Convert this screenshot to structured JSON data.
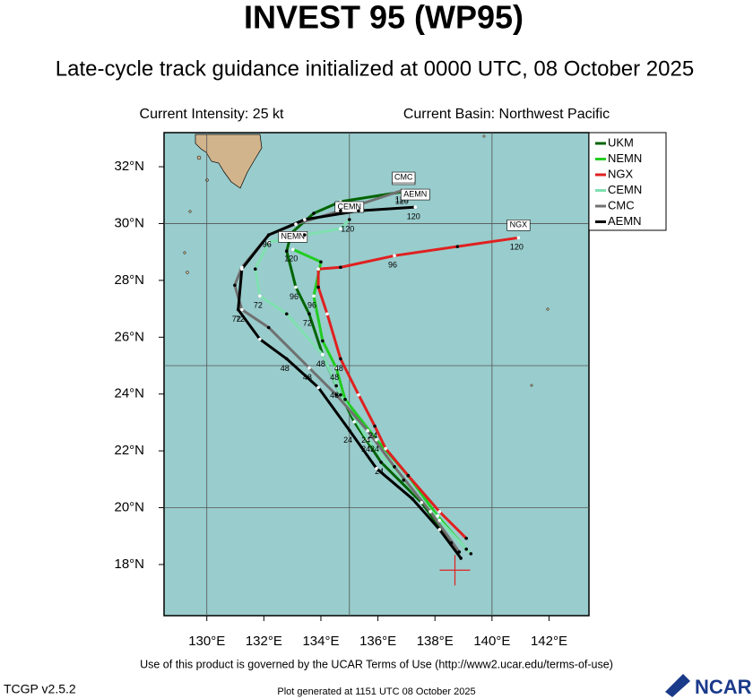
{
  "chart_data": {
    "type": "track",
    "title": "INVEST 95 (WP95)",
    "subtitle": "Late-cycle track guidance initialized at 0000 UTC, 08 October 2025",
    "intensity": "Current Intensity: 25 kt",
    "basin": "Current Basin: Northwest Pacific",
    "footer": "Use of this product is governed by the UCAR Terms of Use (http://www2.ucar.edu/terms-of-use)",
    "version": "TCGP v2.5.2",
    "generated": "Plot generated at 1151 UTC   08 October 2025",
    "logo": "NCAR",
    "xlim": [
      128.5,
      143.4
    ],
    "ylim": [
      16.2,
      33.2
    ],
    "xticks": [
      {
        "value": 130,
        "label": "130°E"
      },
      {
        "value": 132,
        "label": "132°E"
      },
      {
        "value": 134,
        "label": "134°E"
      },
      {
        "value": 136,
        "label": "136°E"
      },
      {
        "value": 138,
        "label": "138°E"
      },
      {
        "value": 140,
        "label": "140°E"
      },
      {
        "value": 142,
        "label": "142°E"
      }
    ],
    "yticks": [
      {
        "value": 18,
        "label": "18°N"
      },
      {
        "value": 20,
        "label": "20°N"
      },
      {
        "value": 22,
        "label": "22°N"
      },
      {
        "value": 24,
        "label": "24°N"
      },
      {
        "value": 26,
        "label": "26°N"
      },
      {
        "value": 28,
        "label": "28°N"
      },
      {
        "value": 30,
        "label": "30°N"
      },
      {
        "value": 32,
        "label": "32°N"
      }
    ],
    "grid_x": [
      130,
      135,
      140
    ],
    "grid_y": [
      20,
      25,
      30
    ],
    "legend": "upper right",
    "current_position": {
      "x": 138.7,
      "y": 17.8
    },
    "series": [
      {
        "name": "UKM",
        "color": "#006400",
        "x": [
          138.57,
          137.53,
          136.11,
          135.17,
          134.54,
          134.06,
          133.59,
          133.12,
          132.8,
          132.96,
          133.75,
          134.69,
          136.9
        ],
        "values": [
          18.76,
          20.18,
          21.6,
          23.02,
          24.29,
          25.39,
          26.82,
          27.76,
          29.03,
          29.66,
          30.36,
          30.77,
          31.12
        ],
        "point_labels": [
          null,
          null,
          "24",
          null,
          "48",
          null,
          "72",
          "96",
          null,
          null,
          null,
          null,
          "120"
        ]
      },
      {
        "name": "NEMN",
        "color": "#22cc22",
        "x": [
          139.1,
          138.09,
          137.06,
          135.95,
          134.85,
          134.54,
          134.06,
          133.75,
          134.0,
          133.02
        ],
        "values": [
          18.54,
          19.71,
          21.13,
          22.39,
          23.81,
          24.92,
          25.87,
          27.45,
          28.65,
          29.09
        ],
        "point_labels": [
          null,
          null,
          null,
          "24",
          null,
          "48",
          null,
          "96",
          null,
          "120"
        ]
      },
      {
        "name": "NGX",
        "color": "#e02020",
        "x": [
          139.1,
          138.16,
          137.06,
          136.27,
          135.89,
          135.32,
          134.69,
          134.22,
          133.91,
          133.91,
          134.69,
          136.58,
          138.79,
          140.93
        ],
        "values": [
          18.92,
          19.86,
          21.13,
          22.08,
          22.87,
          23.97,
          25.24,
          26.82,
          27.76,
          28.4,
          28.46,
          28.87,
          29.19,
          29.5
        ],
        "point_labels": [
          null,
          null,
          null,
          null,
          "24",
          null,
          "48",
          null,
          null,
          null,
          null,
          "96",
          null,
          "120"
        ]
      },
      {
        "name": "CEMN",
        "color": "#7fe0b0",
        "x": [
          139.26,
          138.16,
          136.9,
          135.64,
          134.69,
          134.06,
          132.8,
          131.86,
          131.7,
          132.17,
          133.43,
          134.69,
          135.0
        ],
        "values": [
          18.38,
          19.55,
          20.97,
          22.39,
          23.97,
          25.39,
          26.82,
          27.45,
          28.4,
          29.35,
          29.6,
          29.82,
          30.14
        ],
        "point_labels": [
          null,
          null,
          null,
          "24",
          null,
          "48",
          null,
          "72",
          null,
          null,
          null,
          null,
          "120"
        ]
      },
      {
        "name": "CMC",
        "color": "#707070",
        "x": [
          138.85,
          137.84,
          136.58,
          135.64,
          134.54,
          133.59,
          132.17,
          131.23,
          130.98,
          131.23,
          132.17,
          133.12,
          134.69,
          136.9
        ],
        "values": [
          18.44,
          19.86,
          21.44,
          22.71,
          23.97,
          24.92,
          26.34,
          26.97,
          27.83,
          28.46,
          29.6,
          29.98,
          30.45,
          31.18
        ],
        "point_labels": [
          null,
          null,
          null,
          "24",
          null,
          "48",
          null,
          "72",
          null,
          null,
          "96",
          null,
          null,
          "120"
        ]
      },
      {
        "name": "AEMN",
        "color": "#000000",
        "x": [
          138.91,
          138.16,
          137.21,
          135.95,
          135.01,
          133.91,
          132.8,
          131.86,
          131.1,
          131.23,
          132.17,
          133.43,
          135.32,
          137.31
        ],
        "values": [
          18.22,
          19.23,
          20.31,
          21.38,
          22.71,
          24.23,
          25.24,
          25.93,
          26.97,
          28.4,
          29.6,
          30.14,
          30.45,
          30.58
        ],
        "point_labels": [
          null,
          null,
          null,
          null,
          "24",
          null,
          "48",
          null,
          "72",
          null,
          "96",
          null,
          null,
          "120"
        ]
      }
    ]
  }
}
